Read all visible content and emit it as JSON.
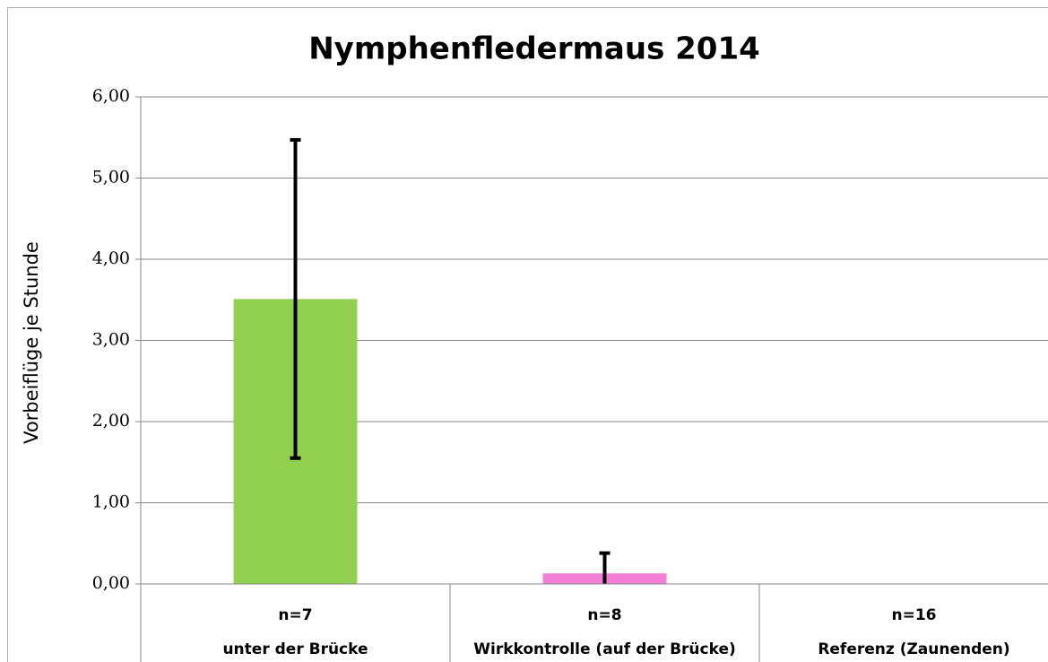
{
  "chart_data": {
    "type": "bar",
    "title": "Nymphenfledermaus 2014",
    "y_label": "Vorbeiflüge je Stunde",
    "categories": [
      "unter der Brücke",
      "Wirkkontrolle (auf der Brücke)",
      "Referenz (Zaunenden)"
    ],
    "n_labels": [
      "n=7",
      "n=8",
      "n=16"
    ],
    "values": [
      3.51,
      0.13,
      0
    ],
    "errors": [
      1.96,
      0.25,
      0
    ],
    "colors": [
      "#92d050",
      "#f47fd6",
      "#4f81bd"
    ],
    "error_color": "#000000",
    "ylim": [
      0,
      6
    ],
    "yticks": [
      {
        "value": 0,
        "label": "0,00"
      },
      {
        "value": 1,
        "label": "1,00"
      },
      {
        "value": 2,
        "label": "2,00"
      },
      {
        "value": 3,
        "label": "3,00"
      },
      {
        "value": 4,
        "label": "4,00"
      },
      {
        "value": 5,
        "label": "5,00"
      },
      {
        "value": 6,
        "label": "6,00"
      }
    ],
    "grid": true
  }
}
